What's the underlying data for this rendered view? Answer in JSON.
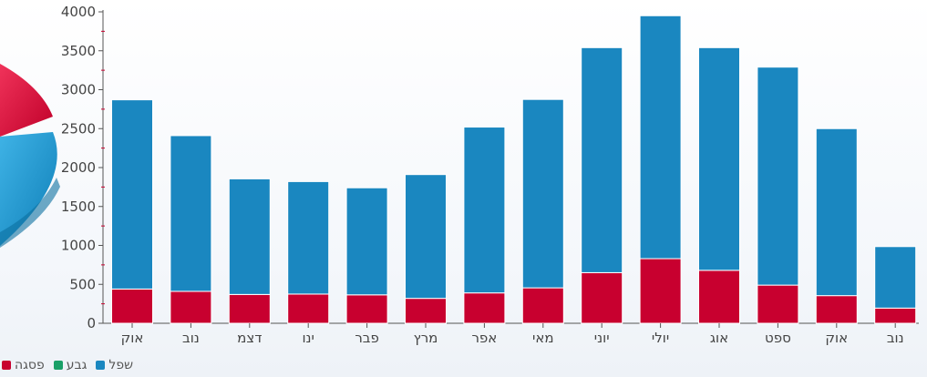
{
  "chart_data": {
    "type": "bar",
    "stacked": true,
    "categories": [
      "אוק",
      "נוב",
      "דצמ",
      "ינו",
      "פבר",
      "מרץ",
      "אפר",
      "מאי",
      "יוני",
      "יולי",
      "אוג",
      "ספט",
      "אוק",
      "נוב"
    ],
    "series": [
      {
        "name": "פסגה",
        "color": "#c8002f",
        "values": [
          440,
          410,
          370,
          375,
          365,
          320,
          390,
          455,
          650,
          830,
          680,
          490,
          355,
          195
        ]
      },
      {
        "name": "גבע",
        "color": "#1aa068",
        "values": [
          0,
          0,
          0,
          0,
          0,
          0,
          0,
          0,
          0,
          0,
          0,
          0,
          0,
          0
        ]
      },
      {
        "name": "שפל",
        "color": "#1a87c0",
        "values": [
          2430,
          2000,
          1485,
          1445,
          1375,
          1590,
          2130,
          2420,
          2890,
          3120,
          2860,
          2800,
          2145,
          790
        ]
      }
    ],
    "ylim": [
      0,
      4000
    ],
    "yticks": [
      0,
      500,
      1000,
      1500,
      2000,
      2500,
      3000,
      3500,
      4000
    ],
    "grid": false,
    "legend_position": "bottom-left"
  },
  "legend": {
    "items": [
      {
        "label": "פסגה",
        "color": "#c8002f"
      },
      {
        "label": "גבע",
        "color": "#1aa068"
      },
      {
        "label": "שפל",
        "color": "#1a87c0"
      }
    ]
  }
}
